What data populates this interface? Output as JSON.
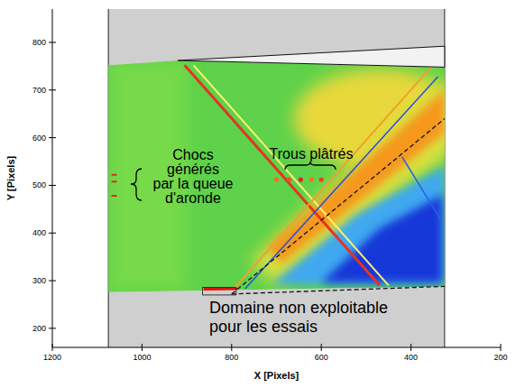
{
  "chart_data": {
    "type": "image",
    "x_label": "X [Pixels]",
    "y_label": "Y [Pixels]",
    "xlim": [
      1200,
      200
    ],
    "xticks": [
      1200,
      1000,
      800,
      600,
      400,
      200
    ],
    "ylim": [
      160,
      870
    ],
    "yticks": [
      200,
      300,
      400,
      500,
      600,
      700,
      800
    ],
    "annotations": [
      {
        "text": [
          "Chocs",
          "générés",
          "par la queue",
          "d'aronde"
        ]
      },
      {
        "text": [
          "Trous plâtrés"
        ]
      },
      {
        "text": [
          "Domaine non exploitable",
          "pour les essais"
        ]
      }
    ]
  }
}
